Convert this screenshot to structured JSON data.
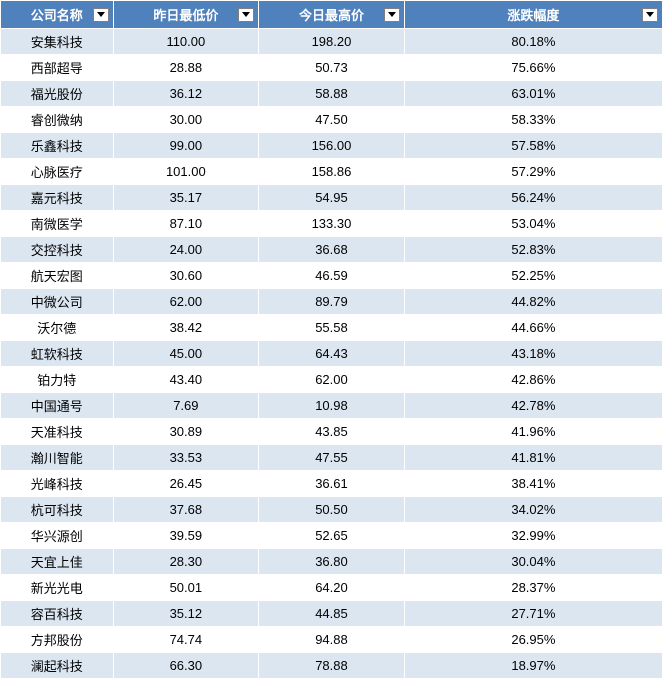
{
  "table": {
    "columns": [
      {
        "label": "公司名称"
      },
      {
        "label": "昨日最低价"
      },
      {
        "label": "今日最高价"
      },
      {
        "label": "涨跌幅度"
      }
    ],
    "rows": [
      [
        "安集科技",
        "110.00",
        "198.20",
        "80.18%"
      ],
      [
        "西部超导",
        "28.88",
        "50.73",
        "75.66%"
      ],
      [
        "福光股份",
        "36.12",
        "58.88",
        "63.01%"
      ],
      [
        "睿创微纳",
        "30.00",
        "47.50",
        "58.33%"
      ],
      [
        "乐鑫科技",
        "99.00",
        "156.00",
        "57.58%"
      ],
      [
        "心脉医疗",
        "101.00",
        "158.86",
        "57.29%"
      ],
      [
        "嘉元科技",
        "35.17",
        "54.95",
        "56.24%"
      ],
      [
        "南微医学",
        "87.10",
        "133.30",
        "53.04%"
      ],
      [
        "交控科技",
        "24.00",
        "36.68",
        "52.83%"
      ],
      [
        "航天宏图",
        "30.60",
        "46.59",
        "52.25%"
      ],
      [
        "中微公司",
        "62.00",
        "89.79",
        "44.82%"
      ],
      [
        "沃尔德",
        "38.42",
        "55.58",
        "44.66%"
      ],
      [
        "虹软科技",
        "45.00",
        "64.43",
        "43.18%"
      ],
      [
        "铂力特",
        "43.40",
        "62.00",
        "42.86%"
      ],
      [
        "中国通号",
        "7.69",
        "10.98",
        "42.78%"
      ],
      [
        "天准科技",
        "30.89",
        "43.85",
        "41.96%"
      ],
      [
        "瀚川智能",
        "33.53",
        "47.55",
        "41.81%"
      ],
      [
        "光峰科技",
        "26.45",
        "36.61",
        "38.41%"
      ],
      [
        "杭可科技",
        "37.68",
        "50.50",
        "34.02%"
      ],
      [
        "华兴源创",
        "39.59",
        "52.65",
        "32.99%"
      ],
      [
        "天宜上佳",
        "28.30",
        "36.80",
        "30.04%"
      ],
      [
        "新光光电",
        "50.01",
        "64.20",
        "28.37%"
      ],
      [
        "容百科技",
        "35.12",
        "44.85",
        "27.71%"
      ],
      [
        "方邦股份",
        "74.74",
        "94.88",
        "26.95%"
      ],
      [
        "澜起科技",
        "66.30",
        "78.88",
        "18.97%"
      ]
    ],
    "header_bg": "#4f81bd",
    "header_fg": "#ffffff",
    "row_odd_bg": "#dce6f1",
    "row_even_bg": "#ffffff",
    "border_color": "#ffffff",
    "font_size": 13
  }
}
